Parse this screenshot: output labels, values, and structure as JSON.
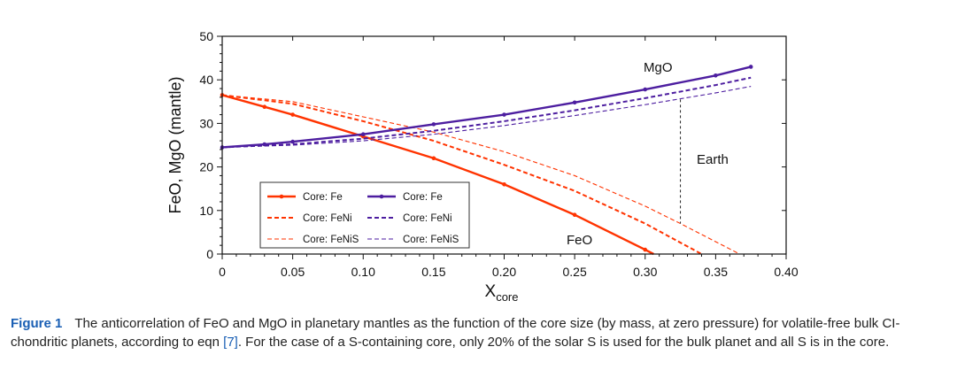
{
  "chart_data": {
    "type": "line",
    "xlabel_main": "X",
    "xlabel_sub": "core",
    "ylabel": "FeO, MgO (mantle)",
    "xlim": [
      0,
      0.4
    ],
    "ylim": [
      0,
      50
    ],
    "x_ticks": [
      "0",
      "0.05",
      "0.10",
      "0.15",
      "0.20",
      "0.25",
      "0.30",
      "0.35",
      "0.40"
    ],
    "y_ticks": [
      "0",
      "10",
      "20",
      "30",
      "40",
      "50"
    ],
    "annotations": {
      "mgo": "MgO",
      "feo": "FeO",
      "earth": "Earth"
    },
    "earth_marker": {
      "x": 0.325,
      "y_bottom": 7,
      "y_top": 35.5
    },
    "colors": {
      "feo": "#ff3300",
      "mgo": "#4d1ea0"
    },
    "series": [
      {
        "name": "Core: Fe",
        "group": "feo",
        "style": "solid",
        "x": [
          0,
          0.03,
          0.05,
          0.1,
          0.15,
          0.2,
          0.25,
          0.3,
          0.306
        ],
        "y": [
          36.5,
          33.8,
          32.0,
          27.0,
          22.0,
          16.0,
          9.0,
          1.0,
          0
        ]
      },
      {
        "name": "Core: FeNi",
        "group": "feo",
        "style": "dashed",
        "x": [
          0,
          0.05,
          0.1,
          0.15,
          0.2,
          0.25,
          0.3,
          0.34
        ],
        "y": [
          36.5,
          34.5,
          30.5,
          26.0,
          20.5,
          14.5,
          7.0,
          0
        ]
      },
      {
        "name": "Core: FeNiS",
        "group": "feo",
        "style": "thin-dashed",
        "x": [
          0,
          0.05,
          0.1,
          0.15,
          0.2,
          0.25,
          0.3,
          0.325,
          0.367
        ],
        "y": [
          36.5,
          35.0,
          31.5,
          28.0,
          23.5,
          18.0,
          11.0,
          7.0,
          0
        ]
      },
      {
        "name": "Core: Fe",
        "group": "mgo",
        "style": "solid",
        "x": [
          0,
          0.03,
          0.05,
          0.1,
          0.15,
          0.2,
          0.25,
          0.3,
          0.35,
          0.375
        ],
        "y": [
          24.5,
          25.2,
          25.8,
          27.5,
          29.8,
          32.0,
          34.8,
          37.8,
          41.0,
          43.0
        ]
      },
      {
        "name": "Core: FeNi",
        "group": "mgo",
        "style": "dashed",
        "x": [
          0,
          0.05,
          0.1,
          0.15,
          0.2,
          0.25,
          0.3,
          0.35,
          0.375
        ],
        "y": [
          24.5,
          25.2,
          26.5,
          28.3,
          30.5,
          33.0,
          35.8,
          38.8,
          40.5
        ]
      },
      {
        "name": "Core: FeNiS",
        "group": "mgo",
        "style": "thin-dashed",
        "x": [
          0,
          0.05,
          0.1,
          0.15,
          0.2,
          0.25,
          0.3,
          0.35,
          0.375
        ],
        "y": [
          24.5,
          25.0,
          26.0,
          27.5,
          29.5,
          31.8,
          34.3,
          37.0,
          38.5
        ]
      }
    ]
  },
  "caption": {
    "label": "Figure 1",
    "text_before_ref": "The anticorrelation of FeO and MgO in planetary mantles as the function of the core size (by mass, at zero pressure) for volatile-free bulk CI-chondritic planets, according to eqn ",
    "ref": "[7]",
    "text_after_ref": ". For the case of a S-containing core, only 20% of the solar S is used for the bulk planet and all S is in the core."
  }
}
